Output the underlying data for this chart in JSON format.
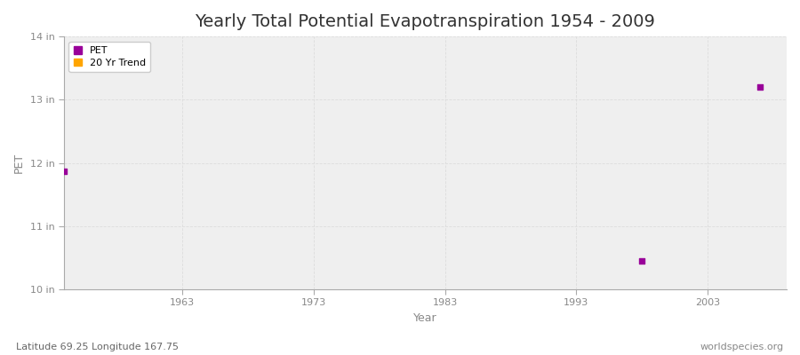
{
  "title": "Yearly Total Potential Evapotranspiration 1954 - 2009",
  "xlabel": "Year",
  "ylabel": "PET",
  "xlim": [
    1954,
    2009
  ],
  "ylim": [
    10,
    14
  ],
  "yticks": [
    10,
    11,
    12,
    13,
    14
  ],
  "ytick_labels": [
    "10 in",
    "11 in",
    "12 in",
    "13 in",
    "14 in"
  ],
  "xticks": [
    1963,
    1973,
    1983,
    1993,
    2003
  ],
  "xtick_labels": [
    "1963",
    "1973",
    "1983",
    "1993",
    "2003"
  ],
  "data_points": [
    {
      "year": 1954,
      "value": 11.87
    },
    {
      "year": 1998,
      "value": 10.45
    },
    {
      "year": 2007,
      "value": 13.2
    }
  ],
  "point_color": "#990099",
  "point_marker": "s",
  "point_size": 15,
  "legend_pet_color": "#990099",
  "legend_trend_color": "#FFA500",
  "legend_pet_label": "PET",
  "legend_trend_label": "20 Yr Trend",
  "fig_bg_color": "#FFFFFF",
  "plot_bg_color": "#EFEFEF",
  "grid_color": "#DDDDDD",
  "spine_color": "#AAAAAA",
  "bottom_left_text": "Latitude 69.25 Longitude 167.75",
  "bottom_right_text": "worldspecies.org",
  "title_fontsize": 14,
  "axis_label_fontsize": 9,
  "tick_label_fontsize": 8,
  "annotation_fontsize": 8,
  "tick_color": "#888888",
  "title_color": "#333333"
}
